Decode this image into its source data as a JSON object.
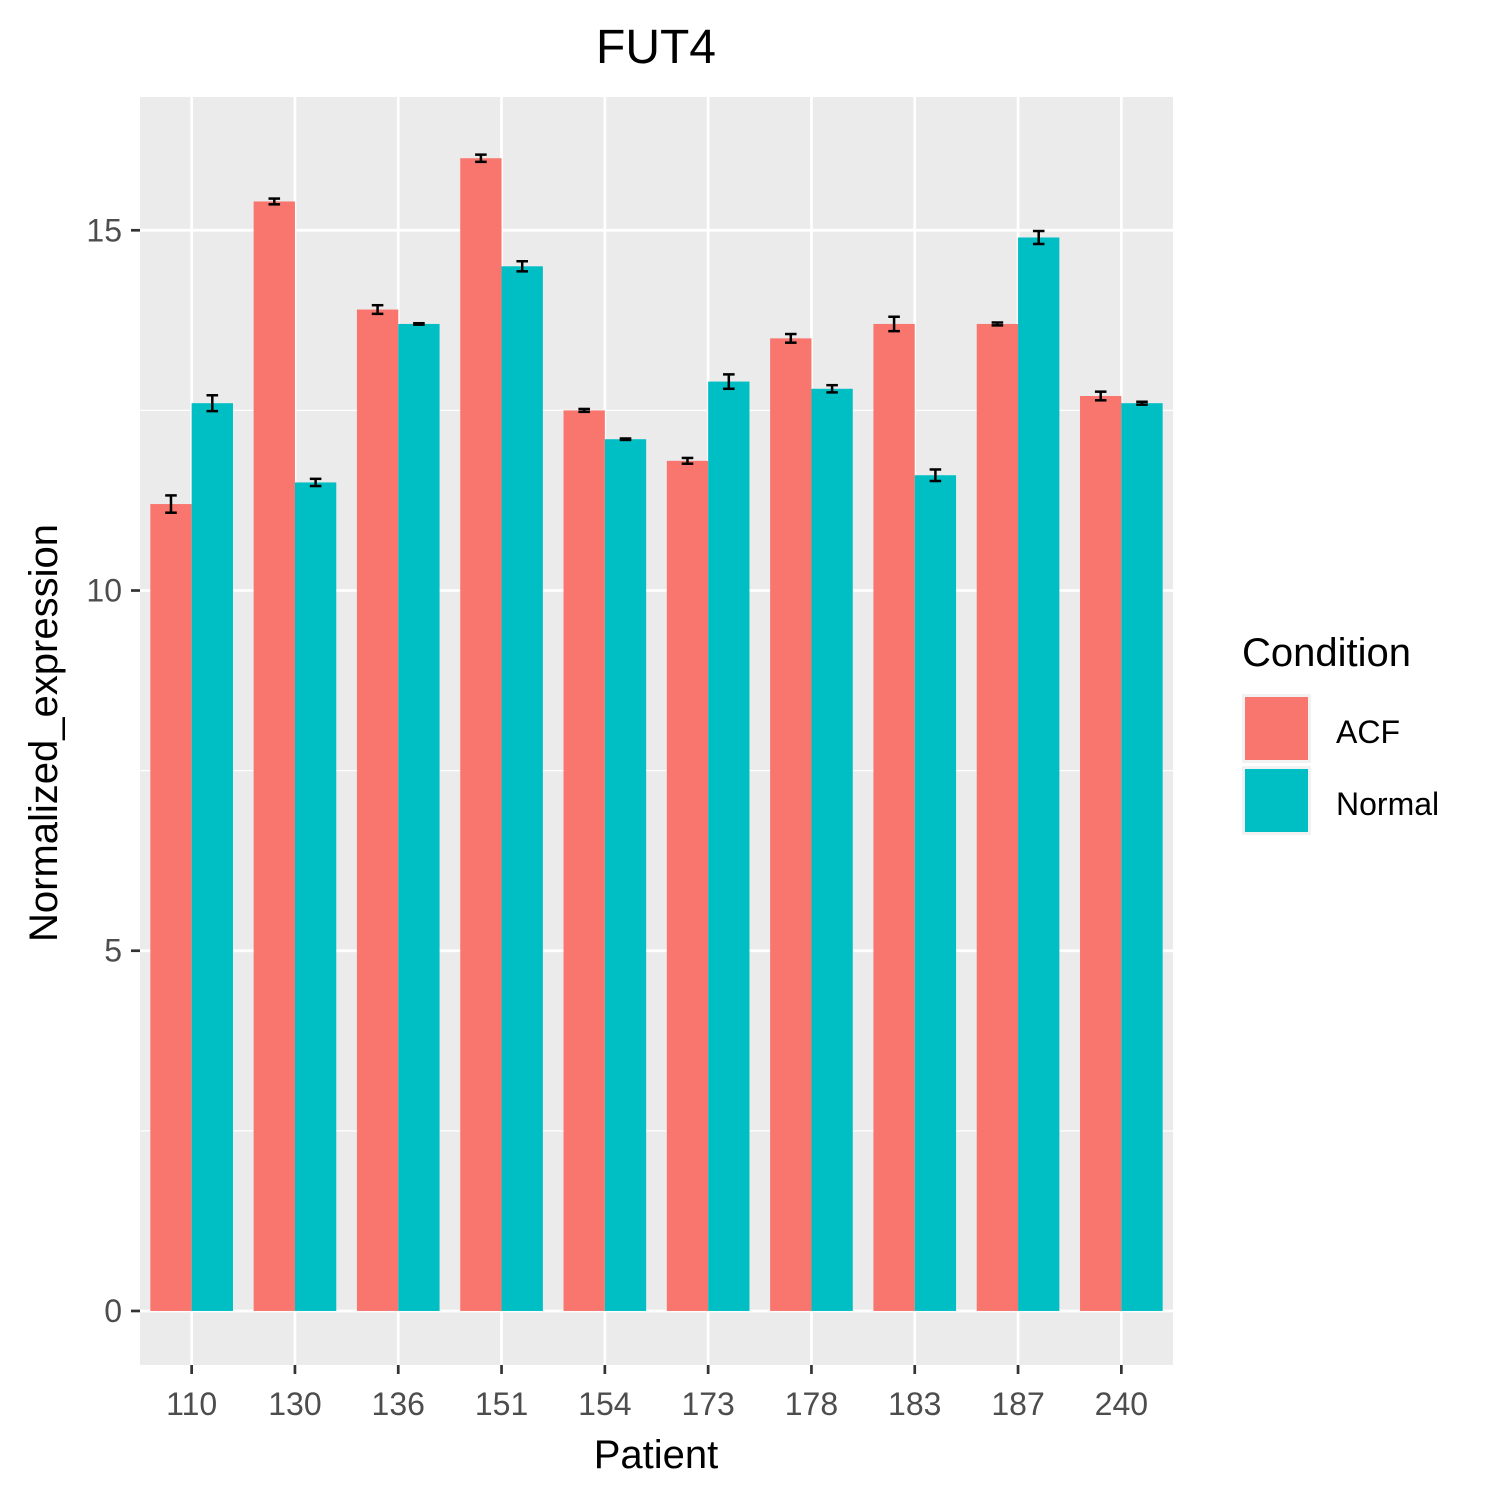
{
  "chart_data": {
    "type": "bar",
    "title": "FUT4",
    "xlabel": "Patient",
    "ylabel": "Normalized_expression",
    "categories": [
      "110",
      "130",
      "136",
      "151",
      "154",
      "173",
      "178",
      "183",
      "187",
      "240"
    ],
    "ylim": [
      -0.75,
      16.85
    ],
    "yticks": [
      "0",
      "5",
      "10",
      "15"
    ],
    "grid": true,
    "legend": {
      "title": "Condition",
      "position": "right"
    },
    "series": [
      {
        "name": "ACF",
        "color": "#F8766D",
        "values": [
          11.2,
          15.4,
          13.9,
          16.0,
          12.5,
          11.8,
          13.5,
          13.7,
          13.7,
          12.7
        ],
        "errors": [
          0.12,
          0.04,
          0.06,
          0.05,
          0.02,
          0.04,
          0.06,
          0.1,
          0.02,
          0.06
        ]
      },
      {
        "name": "Normal",
        "color": "#00BFC4",
        "values": [
          12.6,
          11.5,
          13.7,
          14.5,
          12.1,
          12.9,
          12.8,
          11.6,
          14.9,
          12.6
        ],
        "errors": [
          0.11,
          0.05,
          0.01,
          0.07,
          0.01,
          0.1,
          0.05,
          0.08,
          0.09,
          0.02
        ]
      }
    ]
  }
}
